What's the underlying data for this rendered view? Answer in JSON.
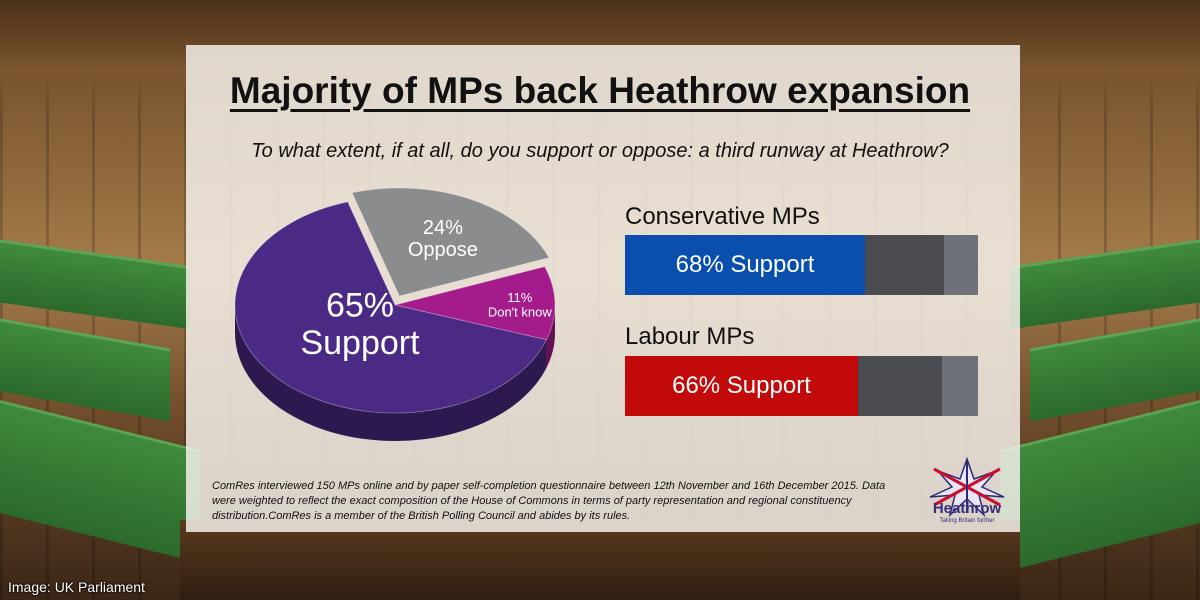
{
  "title": "Majority of MPs back Heathrow expansion",
  "subtitle": "To what extent, if at all, do you support or oppose: a third runway at Heathrow?",
  "colors": {
    "support": "#4a2a84",
    "oppose": "#8a8c8e",
    "dont_know": "#a41c8c",
    "conservative": "#0a4fae",
    "labour": "#c20a0a",
    "bar_dark": "#4a4c50",
    "bar_light": "#6e7278"
  },
  "chart_data": [
    {
      "type": "pie",
      "slices": [
        {
          "label": "Support",
          "value": 65,
          "value_text": "65%"
        },
        {
          "label": "Oppose",
          "value": 24,
          "value_text": "24%"
        },
        {
          "label": "Don't know",
          "value": 11,
          "value_text": "11%"
        }
      ]
    },
    {
      "type": "bar",
      "orientation": "horizontal",
      "stacked": true,
      "categories": [
        "Conservative MPs",
        "Labour MPs"
      ],
      "series": [
        {
          "name": "Support",
          "values": [
            68,
            66
          ]
        }
      ],
      "data_labels": [
        "68% Support",
        "66% Support"
      ],
      "xlim": [
        0,
        100
      ]
    }
  ],
  "footnote": "ComRes interviewed 150 MPs online and by paper self-completion questionnaire between 12th November and 16th December 2015. Data were weighted to reflect the exact composition of the House of Commons in terms of party representation and regional constituency distribution.ComRes is a member of the British Polling Council and abides by its rules.",
  "logo": {
    "name": "Heathrow",
    "tagline": "Taking Britain further",
    "icon": "heathrow-logo"
  },
  "credit": "Image: UK Parliament"
}
